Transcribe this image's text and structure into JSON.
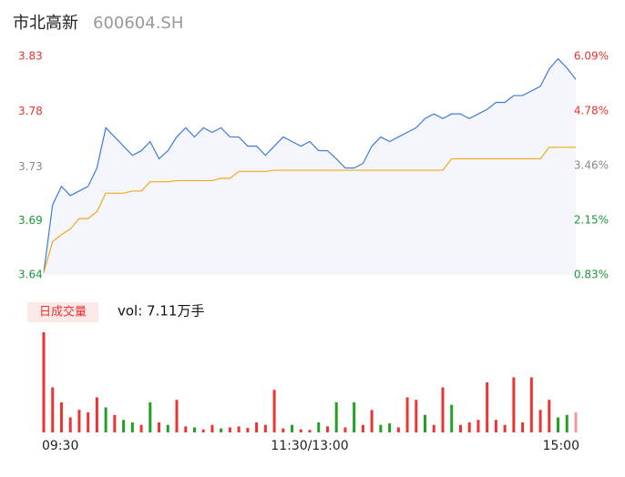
{
  "chart_data": {
    "type": "intraday",
    "title": "市北高新",
    "subtitle": "600604.SH",
    "xlim": [
      0,
      240
    ],
    "xticks": [
      {
        "value": 0,
        "label": "09:30"
      },
      {
        "value": 120,
        "label": "11:30/13:00"
      },
      {
        "value": 240,
        "label": "15:00"
      }
    ],
    "ylim": [
      3.64,
      3.83
    ],
    "yticks": [
      3.64,
      {
        "value": 3.687,
        "label": "3.69"
      },
      {
        "value": 3.734,
        "label": "3.73"
      },
      {
        "value": 3.782,
        "label": "3.78"
      },
      3.83
    ],
    "ytick_colors": [
      "#1a9a3a",
      "#1a9a3a",
      "#888888",
      "#e83232",
      "#e83232"
    ],
    "y2lim": [
      0.83,
      6.09
    ],
    "y2ticks": [
      {
        "value": 0.83,
        "label": "0.83%"
      },
      {
        "value": 2.15,
        "label": "2.15%"
      },
      {
        "value": 3.46,
        "label": "3.46%"
      },
      {
        "value": 4.78,
        "label": "4.78%"
      },
      {
        "value": 6.09,
        "label": "6.09%"
      }
    ],
    "y2tick_colors": [
      "#1a9a3a",
      "#1a9a3a",
      "#888888",
      "#e83232",
      "#e83232"
    ],
    "x": [
      0,
      4,
      8,
      12,
      16,
      20,
      24,
      28,
      32,
      36,
      40,
      44,
      48,
      52,
      56,
      60,
      64,
      68,
      72,
      76,
      80,
      84,
      88,
      92,
      96,
      100,
      104,
      108,
      112,
      116,
      120,
      124,
      128,
      132,
      136,
      140,
      144,
      148,
      152,
      156,
      160,
      164,
      168,
      172,
      176,
      180,
      184,
      188,
      192,
      196,
      200,
      204,
      208,
      212,
      216,
      220,
      224,
      228,
      232,
      236,
      240
    ],
    "series": [
      {
        "color": "#3d7be0",
        "values": [
          3.642,
          3.701,
          3.717,
          3.709,
          3.713,
          3.717,
          3.733,
          3.768,
          3.76,
          3.752,
          3.744,
          3.748,
          3.756,
          3.741,
          3.748,
          3.76,
          3.768,
          3.76,
          3.768,
          3.764,
          3.768,
          3.76,
          3.76,
          3.752,
          3.752,
          3.744,
          3.752,
          3.76,
          3.756,
          3.752,
          3.756,
          3.748,
          3.748,
          3.741,
          3.733,
          3.733,
          3.737,
          3.752,
          3.76,
          3.756,
          3.76,
          3.764,
          3.768,
          3.776,
          3.78,
          3.776,
          3.78,
          3.78,
          3.776,
          3.78,
          3.784,
          3.79,
          3.79,
          3.796,
          3.796,
          3.8,
          3.804,
          3.819,
          3.828,
          3.82,
          3.81
        ]
      },
      {
        "color": "#f0a81e",
        "values": [
          3.642,
          3.669,
          3.675,
          3.68,
          3.689,
          3.689,
          3.695,
          3.711,
          3.711,
          3.711,
          3.713,
          3.713,
          3.721,
          3.721,
          3.721,
          3.722,
          3.722,
          3.722,
          3.722,
          3.722,
          3.724,
          3.724,
          3.73,
          3.73,
          3.73,
          3.73,
          3.731,
          3.731,
          3.731,
          3.731,
          3.731,
          3.731,
          3.731,
          3.731,
          3.731,
          3.731,
          3.731,
          3.731,
          3.731,
          3.731,
          3.731,
          3.731,
          3.731,
          3.731,
          3.731,
          3.731,
          3.741,
          3.741,
          3.741,
          3.741,
          3.741,
          3.741,
          3.741,
          3.741,
          3.741,
          3.741,
          3.741,
          3.751,
          3.751,
          3.751,
          3.751
        ]
      }
    ],
    "volume": {
      "label": "日成交量",
      "total": "vol: 7.11万手",
      "ylim": [
        0,
        2000
      ],
      "values": [
        2000,
        900,
        600,
        300,
        450,
        400,
        700,
        500,
        350,
        250,
        200,
        150,
        600,
        200,
        150,
        650,
        120,
        100,
        60,
        150,
        80,
        100,
        120,
        90,
        200,
        150,
        850,
        80,
        150,
        60,
        50,
        200,
        120,
        600,
        100,
        600,
        150,
        450,
        150,
        180,
        100,
        700,
        650,
        350,
        150,
        900,
        550,
        150,
        200,
        250,
        1000,
        250,
        150,
        1100,
        200,
        1100,
        450,
        650,
        300,
        350,
        400
      ],
      "colors": [
        "#ee3333",
        "#ee3333",
        "#ee3333",
        "#ee3333",
        "#ee3333",
        "#ee3333",
        "#ee3333",
        "#22a022",
        "#ee3333",
        "#22a022",
        "#22a022",
        "#ee3333",
        "#22a022",
        "#ee3333",
        "#22a022",
        "#ee3333",
        "#ee3333",
        "#22a022",
        "#ee3333",
        "#ee3333",
        "#22a022",
        "#ee3333",
        "#ee3333",
        "#ee3333",
        "#ee3333",
        "#ee3333",
        "#ee3333",
        "#ee3333",
        "#22a022",
        "#ee3333",
        "#ee3333",
        "#22a022",
        "#ee3333",
        "#22a022",
        "#ee3333",
        "#22a022",
        "#ee3333",
        "#ee3333",
        "#22a022",
        "#22a022",
        "#ee3333",
        "#ee3333",
        "#ee3333",
        "#22a022",
        "#ee3333",
        "#ee3333",
        "#22a022",
        "#ee3333",
        "#ee3333",
        "#ee3333",
        "#ee3333",
        "#ee3333",
        "#ee3333",
        "#ee3333",
        "#ee3333",
        "#ee3333",
        "#ee3333",
        "#ee3333",
        "#22a022",
        "#22a022",
        "#f19a9a"
      ]
    }
  }
}
